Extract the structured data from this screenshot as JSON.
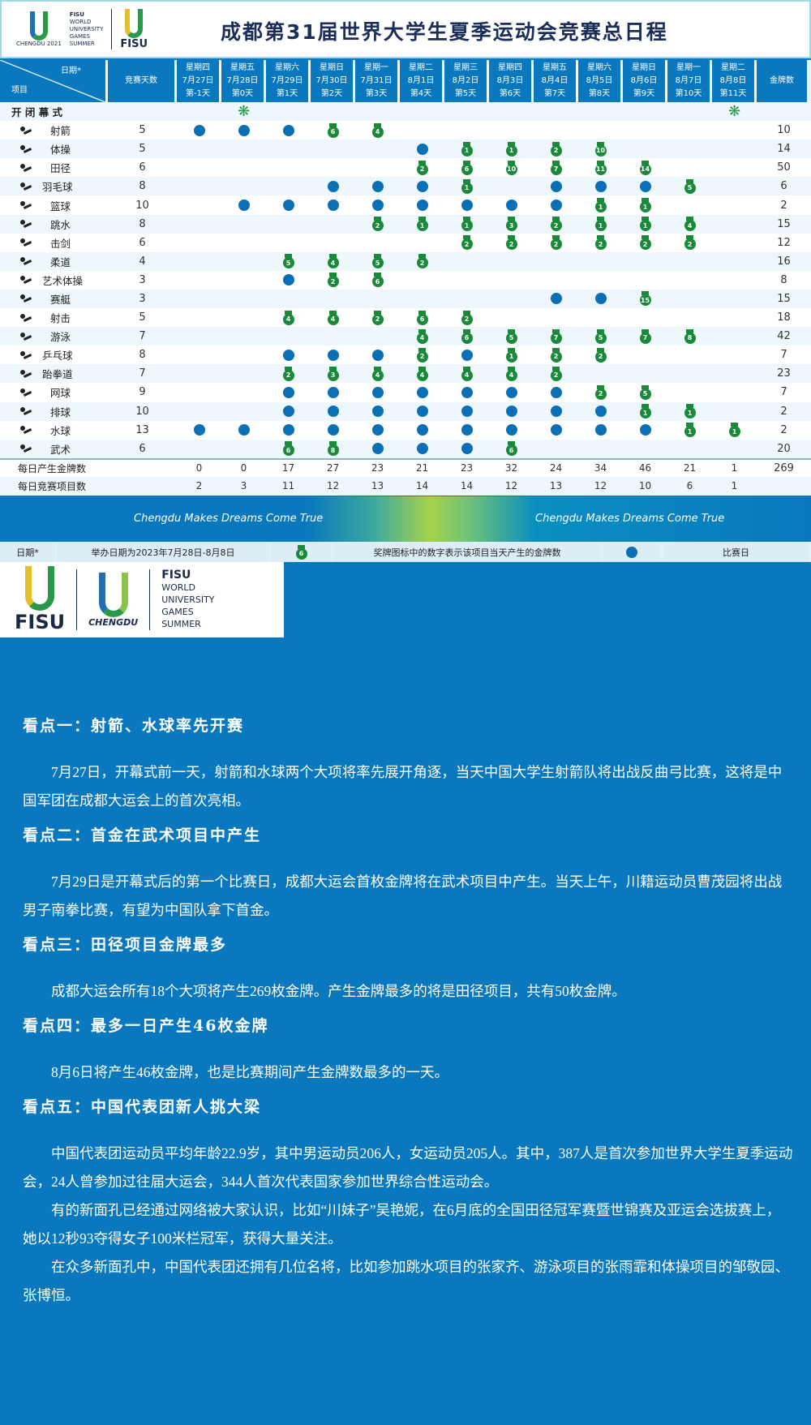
{
  "header": {
    "title": "成都第31届世界大学生夏季运动会竞赛总日程",
    "logo_left": {
      "line1": "FISU",
      "line2": "WORLD",
      "line3": "UNIVERSITY",
      "line4": "GAMES",
      "line5": "SUMMER",
      "caption": "CHENGDU 2021"
    },
    "logo_right": "FISU"
  },
  "table": {
    "corner_date": "日期*",
    "corner_item": "项目",
    "days_col": "竞赛天数",
    "gold_col": "金牌数",
    "dates": [
      {
        "weekday": "星期四",
        "date": "7月27日",
        "day": "第-1天"
      },
      {
        "weekday": "星期五",
        "date": "7月28日",
        "day": "第0天"
      },
      {
        "weekday": "星期六",
        "date": "7月29日",
        "day": "第1天"
      },
      {
        "weekday": "星期日",
        "date": "7月30日",
        "day": "第2天"
      },
      {
        "weekday": "星期一",
        "date": "7月31日",
        "day": "第3天"
      },
      {
        "weekday": "星期二",
        "date": "8月1日",
        "day": "第4天"
      },
      {
        "weekday": "星期三",
        "date": "8月2日",
        "day": "第5天"
      },
      {
        "weekday": "星期四",
        "date": "8月3日",
        "day": "第6天"
      },
      {
        "weekday": "星期五",
        "date": "8月4日",
        "day": "第7天"
      },
      {
        "weekday": "星期六",
        "date": "8月5日",
        "day": "第8天"
      },
      {
        "weekday": "星期日",
        "date": "8月6日",
        "day": "第9天"
      },
      {
        "weekday": "星期一",
        "date": "8月7日",
        "day": "第10天"
      },
      {
        "weekday": "星期二",
        "date": "8月8日",
        "day": "第11天"
      }
    ],
    "ceremony": {
      "label": "开 闭 幕 式",
      "fireworks_days": [
        1,
        12
      ],
      "icon": "fireworks-icon"
    },
    "sports": [
      {
        "name": "射箭",
        "days": "5",
        "gold": "10",
        "cells": [
          "dot",
          "dot",
          "dot",
          6,
          4,
          "",
          "",
          "",
          "",
          "",
          "",
          "",
          ""
        ]
      },
      {
        "name": "体操",
        "days": "5",
        "gold": "14",
        "cells": [
          "",
          "",
          "",
          "",
          "",
          "dot",
          1,
          1,
          2,
          10,
          "",
          "",
          ""
        ]
      },
      {
        "name": "田径",
        "days": "6",
        "gold": "50",
        "cells": [
          "",
          "",
          "",
          "",
          "",
          2,
          6,
          10,
          7,
          11,
          14,
          "",
          ""
        ]
      },
      {
        "name": "羽毛球",
        "days": "8",
        "gold": "6",
        "cells": [
          "",
          "",
          "",
          "dot",
          "dot",
          "dot",
          1,
          "",
          "dot",
          "dot",
          "dot",
          5,
          ""
        ]
      },
      {
        "name": "篮球",
        "days": "10",
        "gold": "2",
        "cells": [
          "",
          "dot",
          "dot",
          "dot",
          "dot",
          "dot",
          "dot",
          "dot",
          "dot",
          1,
          1,
          "",
          ""
        ]
      },
      {
        "name": "跳水",
        "days": "8",
        "gold": "15",
        "cells": [
          "",
          "",
          "",
          "",
          "2",
          1,
          1,
          3,
          2,
          1,
          1,
          4,
          ""
        ]
      },
      {
        "name": "击剑",
        "days": "6",
        "gold": "12",
        "cells": [
          "",
          "",
          "",
          "",
          "",
          "",
          2,
          2,
          2,
          2,
          2,
          2,
          ""
        ]
      },
      {
        "name": "柔道",
        "days": "4",
        "gold": "16",
        "cells": [
          "",
          "",
          5,
          4,
          5,
          2,
          "",
          "",
          "",
          "",
          "",
          "",
          ""
        ]
      },
      {
        "name": "艺术体操",
        "days": "3",
        "gold": "8",
        "cells": [
          "",
          "",
          "dot",
          2,
          6,
          "",
          "",
          "",
          "",
          "",
          "",
          "",
          ""
        ]
      },
      {
        "name": "赛艇",
        "days": "3",
        "gold": "15",
        "cells": [
          "",
          "",
          "",
          "",
          "",
          "",
          "",
          "",
          "dot",
          "dot",
          15,
          "",
          ""
        ]
      },
      {
        "name": "射击",
        "days": "5",
        "gold": "18",
        "cells": [
          "",
          "",
          4,
          4,
          2,
          6,
          2,
          "",
          "",
          "",
          "",
          "",
          ""
        ]
      },
      {
        "name": "游泳",
        "days": "7",
        "gold": "42",
        "cells": [
          "",
          "",
          "",
          "",
          "",
          4,
          6,
          5,
          7,
          5,
          7,
          8,
          ""
        ]
      },
      {
        "name": "乒乓球",
        "days": "8",
        "gold": "7",
        "cells": [
          "",
          "",
          "dot",
          "dot",
          "dot",
          2,
          "dot",
          1,
          2,
          2,
          "",
          "",
          ""
        ]
      },
      {
        "name": "跆拳道",
        "days": "7",
        "gold": "23",
        "cells": [
          "",
          "",
          2,
          3,
          4,
          4,
          4,
          4,
          2,
          "",
          "",
          "",
          ""
        ]
      },
      {
        "name": "网球",
        "days": "9",
        "gold": "7",
        "cells": [
          "",
          "",
          "dot",
          "dot",
          "dot",
          "dot",
          "dot",
          "dot",
          "dot",
          2,
          5,
          "",
          ""
        ]
      },
      {
        "name": "排球",
        "days": "10",
        "gold": "2",
        "cells": [
          "",
          "",
          "dot",
          "dot",
          "dot",
          "dot",
          "dot",
          "dot",
          "dot",
          "dot",
          1,
          1,
          ""
        ]
      },
      {
        "name": "水球",
        "days": "13",
        "gold": "2",
        "cells": [
          "dot",
          "dot",
          "dot",
          "dot",
          "dot",
          "dot",
          "dot",
          "dot",
          "dot",
          "dot",
          "dot",
          1,
          1
        ]
      },
      {
        "name": "武术",
        "days": "6",
        "gold": "20",
        "cells": [
          "",
          "",
          6,
          8,
          "dot",
          "dot",
          "dot",
          6,
          "",
          "",
          "",
          "",
          ""
        ]
      }
    ],
    "daily_gold": {
      "label": "每日产生金牌数",
      "values": [
        "0",
        "0",
        "17",
        "27",
        "23",
        "21",
        "23",
        "32",
        "24",
        "34",
        "46",
        "21",
        "1"
      ],
      "total": "269"
    },
    "daily_events": {
      "label": "每日竞赛项目数",
      "values": [
        "2",
        "3",
        "11",
        "12",
        "13",
        "14",
        "14",
        "12",
        "13",
        "12",
        "10",
        "6",
        "1"
      ]
    }
  },
  "banner": {
    "slogan1": "Chengdu Makes Dreams Come True",
    "slogan2": "Chengdu Makes Dreams Come True"
  },
  "legend": {
    "date_label": "日期*",
    "date_text": "举办日期为2023年7月28日-8月8日",
    "medal_sample": "6",
    "medal_text": "奖牌图标中的数字表示该项目当天产生的金牌数",
    "dot_text": "比赛日"
  },
  "big_logo": {
    "fisu": "FISU",
    "chengdu": "CHENGDU",
    "l1": "FISU",
    "l2": "WORLD",
    "l3": "UNIVERSITY",
    "l4": "GAMES",
    "l5": "SUMMER"
  },
  "colors": {
    "blue": "#0a78be",
    "medal_green": "#1a8a3a",
    "dot_blue": "#0a6fb5",
    "title_navy": "#1b2e5a"
  },
  "articles": [
    {
      "heading": "看点一：射箭、水球率先开赛",
      "paras": [
        "7月27日，开幕式前一天，射箭和水球两个大项将率先展开角逐，当天中国大学生射箭队将出战反曲弓比赛，这将是中国军团在成都大运会上的首次亮相。"
      ]
    },
    {
      "heading": "看点二：首金在武术项目中产生",
      "paras": [
        "7月29日是开幕式后的第一个比赛日，成都大运会首枚金牌将在武术项目中产生。当天上午，川籍运动员曹茂园将出战男子南拳比赛，有望为中国队拿下首金。"
      ]
    },
    {
      "heading": "看点三：田径项目金牌最多",
      "paras": [
        "成都大运会所有18个大项将产生269枚金牌。产生金牌最多的将是田径项目，共有50枚金牌。"
      ]
    },
    {
      "heading": "看点四：最多一日产生46枚金牌",
      "paras": [
        "8月6日将产生46枚金牌，也是比赛期间产生金牌数最多的一天。"
      ]
    },
    {
      "heading": "看点五：中国代表团新人挑大梁",
      "paras": [
        "中国代表团运动员平均年龄22.9岁，其中男运动员206人，女运动员205人。其中，387人是首次参加世界大学生夏季运动会，24人曾参加过往届大运会，344人首次代表国家参加世界综合性运动会。",
        "有的新面孔已经通过网络被大家认识，比如“川妹子”吴艳妮，在6月底的全国田径冠军赛暨世锦赛及亚运会选拔赛上，她以12秒93夺得女子100米栏冠军，获得大量关注。",
        "在众多新面孔中，中国代表团还拥有几位名将，比如参加跳水项目的张家齐、游泳项目的张雨霏和体操项目的邹敬园、张博恒。"
      ]
    }
  ]
}
